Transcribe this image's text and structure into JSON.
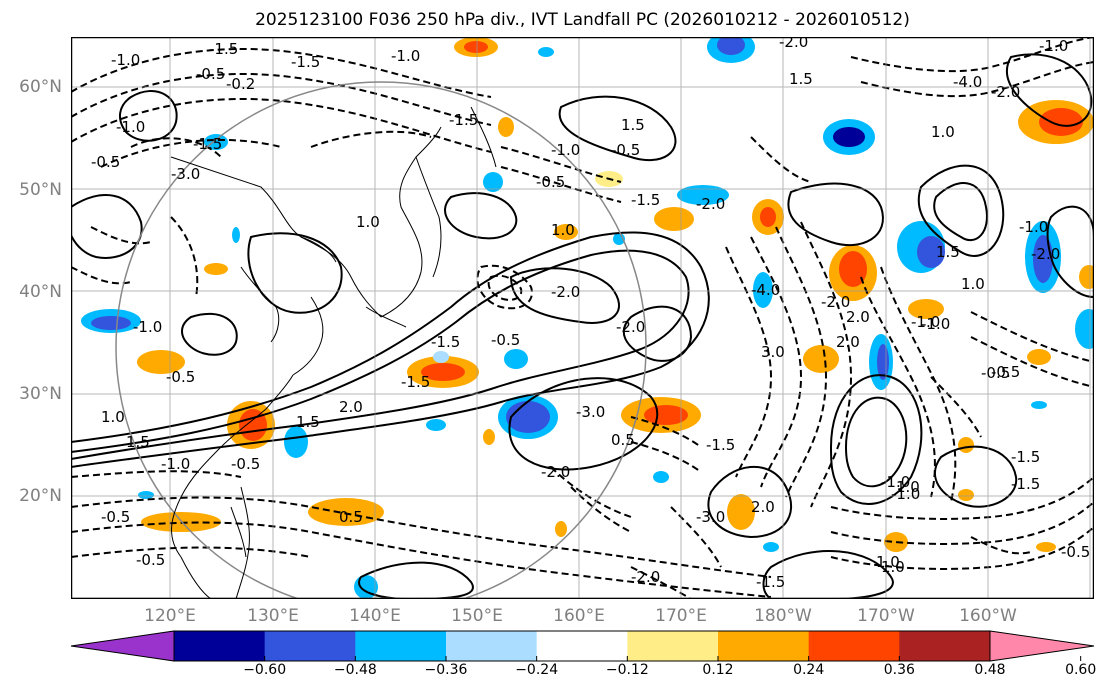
{
  "title": "2025123100 F036 250 hPa div., IVT Landfall PC (2026010212 - 2026010512)",
  "map": {
    "lat_labels": [
      "60°N",
      "50°N",
      "40°N",
      "30°N",
      "20°N"
    ],
    "lon_labels": [
      "120°E",
      "130°E",
      "140°E",
      "150°E",
      "160°E",
      "170°E",
      "180°W",
      "170°W",
      "160°W"
    ]
  },
  "contour_labels": [
    "-1.5",
    "-1.0",
    "-0.5",
    "-0.2",
    "-1.0",
    "1.5",
    "-2.0",
    "-1.0",
    "-4.0",
    "1.5",
    "-3.0",
    "-1.5",
    "-1.0",
    "-0.5",
    "1.0",
    "-1.5",
    "1.0",
    "-0.5",
    "-2.0",
    "-0.5",
    "-1.5",
    "-2.0",
    "-2.0",
    "-1.5",
    "-1.0",
    "-0.5",
    "1.0",
    "2.0",
    "-1.5",
    "1.5",
    "-0.5",
    "-3.0",
    "-2.0",
    "-1.5",
    "-1.0",
    "-0.5",
    "1.0",
    "1.5",
    "0.5",
    "-0.5",
    "-1.0",
    "-1.5",
    "-0.5",
    "-2.0",
    "-1.0",
    "1.0",
    "-0.5",
    "-1.0",
    "2.0",
    "1.5",
    "3.0",
    "2.0",
    "1.0",
    "-1.5",
    "-3.0",
    "2.0",
    "-4.0",
    "-1.0",
    "-1.0",
    "1.0",
    "-1.5",
    "-0.5",
    "1.0",
    "-2.0",
    "-1.5",
    "-2.0",
    "-1.0",
    "-2.0",
    "0.5",
    "-0.5"
  ],
  "colorbar": {
    "ticks": [
      "−0.60",
      "−0.48",
      "−0.36",
      "−0.24",
      "−0.12",
      "0.12",
      "0.24",
      "0.36",
      "0.48",
      "0.60"
    ],
    "colors": [
      "#9933cc",
      "#000099",
      "#3355dd",
      "#00bbff",
      "#aaddff",
      "#ffffff",
      "#ffee88",
      "#ffaa00",
      "#ff4400",
      "#aa2222",
      "#ff88aa"
    ]
  }
}
